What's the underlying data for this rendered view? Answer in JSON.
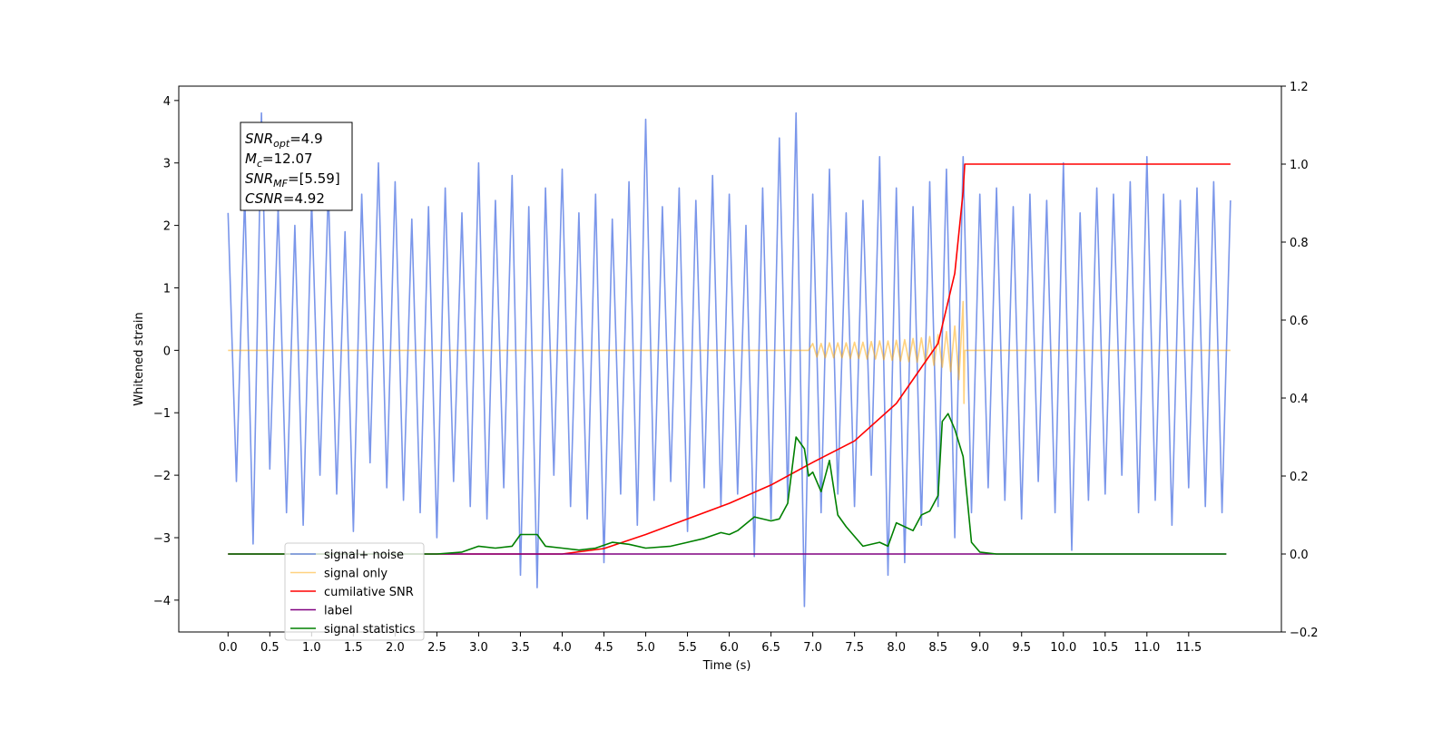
{
  "chart_data": {
    "type": "line",
    "xlabel": "Time (s)",
    "ylabel": "Whitened strain",
    "xlim": [
      -0.59,
      12.61
    ],
    "ylim": [
      -4.51,
      4.23
    ],
    "y2lim": [
      -0.2,
      1.2
    ],
    "xticks": [
      {
        "value": 0,
        "label": "0.0"
      },
      {
        "value": 0.5,
        "label": "0.5"
      },
      {
        "value": 1,
        "label": "1.0"
      },
      {
        "value": 1.5,
        "label": "1.5"
      },
      {
        "value": 2,
        "label": "2.0"
      },
      {
        "value": 2.5,
        "label": "2.5"
      },
      {
        "value": 3,
        "label": "3.0"
      },
      {
        "value": 3.5,
        "label": "3.5"
      },
      {
        "value": 4,
        "label": "4.0"
      },
      {
        "value": 4.5,
        "label": "4.5"
      },
      {
        "value": 5,
        "label": "5.0"
      },
      {
        "value": 5.5,
        "label": "5.5"
      },
      {
        "value": 6,
        "label": "6.0"
      },
      {
        "value": 6.5,
        "label": "6.5"
      },
      {
        "value": 7,
        "label": "7.0"
      },
      {
        "value": 7.5,
        "label": "7.5"
      },
      {
        "value": 8,
        "label": "8.0"
      },
      {
        "value": 8.5,
        "label": "8.5"
      },
      {
        "value": 9,
        "label": "9.0"
      },
      {
        "value": 9.5,
        "label": "9.5"
      },
      {
        "value": 10,
        "label": "10.0"
      },
      {
        "value": 10.5,
        "label": "10.5"
      },
      {
        "value": 11,
        "label": "11.0"
      },
      {
        "value": 11.5,
        "label": "11.5"
      }
    ],
    "yticks": [
      {
        "value": -4,
        "label": "−4"
      },
      {
        "value": -3,
        "label": "−3"
      },
      {
        "value": -2,
        "label": "−2"
      },
      {
        "value": -1,
        "label": "−1"
      },
      0,
      1,
      2,
      3,
      4
    ],
    "y2ticks": [
      {
        "value": -0.2,
        "label": "−0.2"
      },
      {
        "value": 0,
        "label": "0.0"
      },
      0.2,
      0.4,
      0.6,
      0.8,
      {
        "value": 1,
        "label": "1.0"
      },
      1.2
    ],
    "annotation": [
      {
        "symbol": "SNR",
        "subscript": "opt",
        "text": "=4.9"
      },
      {
        "symbol": "M",
        "subscript": "c",
        "text": "=12.07"
      },
      {
        "symbol": "SNR",
        "subscript": "MF",
        "text": "=[5.59]"
      },
      {
        "symbol": "CSNR",
        "text": "=4.92"
      }
    ],
    "series": [
      {
        "name": "signal+ noise",
        "color": "royalblue",
        "alpha": 0.7,
        "x": [
          0.0,
          0.1,
          0.2,
          0.3,
          0.4,
          0.5,
          0.6,
          0.7,
          0.8,
          0.9,
          1.0,
          1.1,
          1.2,
          1.3,
          1.4,
          1.5,
          1.6,
          1.7,
          1.8,
          1.9,
          2.0,
          2.1,
          2.2,
          2.3,
          2.4,
          2.5,
          2.6,
          2.7,
          2.8,
          2.9,
          3.0,
          3.1,
          3.2,
          3.3,
          3.4,
          3.5,
          3.6,
          3.7,
          3.8,
          3.9,
          4.0,
          4.1,
          4.2,
          4.3,
          4.4,
          4.5,
          4.6,
          4.7,
          4.8,
          4.9,
          5.0,
          5.1,
          5.2,
          5.3,
          5.4,
          5.5,
          5.6,
          5.7,
          5.8,
          5.9,
          6.0,
          6.1,
          6.2,
          6.3,
          6.4,
          6.5,
          6.6,
          6.7,
          6.8,
          6.9,
          7.0,
          7.1,
          7.2,
          7.3,
          7.4,
          7.5,
          7.6,
          7.7,
          7.8,
          7.9,
          8.0,
          8.1,
          8.2,
          8.3,
          8.4,
          8.5,
          8.6,
          8.7,
          8.8,
          8.9,
          9.0,
          9.1,
          9.2,
          9.3,
          9.4,
          9.5,
          9.6,
          9.7,
          9.8,
          9.9,
          10.0,
          10.1,
          10.2,
          10.3,
          10.4,
          10.5,
          10.6,
          10.7,
          10.8,
          10.9,
          11.0,
          11.1,
          11.2,
          11.3,
          11.4,
          11.5,
          11.6,
          11.7,
          11.8,
          11.9,
          12.0
        ],
        "values": [
          2.2,
          -2.1,
          2.5,
          -3.1,
          3.8,
          -1.9,
          2.3,
          -2.6,
          2.0,
          -2.8,
          2.4,
          -2.0,
          2.6,
          -2.3,
          1.9,
          -2.9,
          2.5,
          -1.8,
          3.0,
          -2.2,
          2.7,
          -2.4,
          2.1,
          -2.6,
          2.3,
          -3.0,
          2.6,
          -2.1,
          2.2,
          -2.5,
          3.0,
          -2.7,
          2.4,
          -2.2,
          2.8,
          -3.6,
          2.3,
          -3.8,
          2.6,
          -2.0,
          2.9,
          -2.5,
          2.2,
          -2.7,
          2.5,
          -3.4,
          2.1,
          -2.3,
          2.7,
          -2.8,
          3.7,
          -2.4,
          2.3,
          -2.1,
          2.6,
          -2.9,
          2.4,
          -2.2,
          2.8,
          -2.5,
          2.5,
          -2.3,
          2.0,
          -3.3,
          2.6,
          -2.7,
          3.4,
          -2.4,
          3.8,
          -4.1,
          2.5,
          -2.6,
          2.9,
          -2.3,
          2.2,
          -2.5,
          2.4,
          -2.0,
          3.1,
          -3.6,
          2.6,
          -3.4,
          2.3,
          -2.8,
          2.7,
          -2.5,
          2.9,
          -3.0,
          3.1,
          -2.6,
          2.5,
          -2.2,
          2.6,
          -2.4,
          2.3,
          -2.7,
          2.5,
          -2.1,
          2.4,
          -2.6,
          3.0,
          -3.2,
          2.2,
          -2.4,
          2.6,
          -2.3,
          2.5,
          -2.0,
          2.7,
          -2.6,
          3.1,
          -2.4,
          2.5,
          -2.8,
          2.4,
          -2.2,
          2.6,
          -2.5,
          2.7,
          -2.6,
          2.4
        ]
      },
      {
        "name": "signal only",
        "color": "orange",
        "alpha": 0.5,
        "x": [
          0.0,
          6.95,
          7.0,
          7.05,
          7.1,
          7.15,
          7.2,
          7.25,
          7.3,
          7.35,
          7.4,
          7.45,
          7.5,
          7.55,
          7.6,
          7.65,
          7.7,
          7.75,
          7.8,
          7.85,
          7.9,
          7.95,
          8.0,
          8.05,
          8.1,
          8.15,
          8.2,
          8.25,
          8.3,
          8.35,
          8.4,
          8.45,
          8.5,
          8.55,
          8.6,
          8.65,
          8.7,
          8.75,
          8.8,
          8.81,
          8.82,
          12.0
        ],
        "values": [
          0,
          0,
          0.11,
          -0.11,
          0.11,
          -0.12,
          0.12,
          -0.12,
          0.12,
          -0.12,
          0.12,
          -0.13,
          0.13,
          -0.13,
          0.13,
          -0.14,
          0.14,
          -0.14,
          0.15,
          -0.15,
          0.15,
          -0.16,
          0.16,
          -0.17,
          0.17,
          -0.18,
          0.19,
          -0.19,
          0.2,
          -0.21,
          0.22,
          -0.24,
          0.25,
          -0.27,
          0.3,
          -0.34,
          0.39,
          -0.47,
          0.78,
          -0.85,
          0,
          0
        ]
      },
      {
        "name": "cumilative SNR",
        "color": "red",
        "alpha": 1,
        "axis": "y2",
        "x": [
          0.0,
          4.0,
          4.5,
          5.0,
          5.5,
          6.0,
          6.5,
          7.0,
          7.5,
          8.0,
          8.5,
          8.7,
          8.8,
          8.82,
          12.0
        ],
        "values": [
          0,
          0,
          0.014,
          0.05,
          0.09,
          0.13,
          0.177,
          0.235,
          0.29,
          0.386,
          0.54,
          0.72,
          0.93,
          1.0,
          1.0
        ]
      },
      {
        "name": "label",
        "color": "purple",
        "alpha": 1,
        "axis": "y2",
        "x": [
          0.0,
          11.95
        ],
        "values": [
          0,
          0
        ]
      },
      {
        "name": "signal statistics",
        "color": "green",
        "alpha": 1,
        "axis": "y2",
        "x": [
          0.0,
          2.5,
          2.8,
          3.0,
          3.2,
          3.4,
          3.5,
          3.7,
          3.8,
          4.0,
          4.2,
          4.4,
          4.6,
          4.8,
          5.0,
          5.3,
          5.5,
          5.7,
          5.9,
          6.0,
          6.1,
          6.3,
          6.5,
          6.6,
          6.7,
          6.8,
          6.9,
          6.95,
          7.0,
          7.1,
          7.2,
          7.3,
          7.4,
          7.6,
          7.8,
          7.9,
          8.0,
          8.2,
          8.3,
          8.4,
          8.5,
          8.55,
          8.62,
          8.7,
          8.8,
          8.9,
          9.0,
          9.2,
          11.95
        ],
        "values": [
          0,
          0,
          0.005,
          0.02,
          0.015,
          0.02,
          0.05,
          0.05,
          0.02,
          0.015,
          0.01,
          0.015,
          0.03,
          0.025,
          0.015,
          0.02,
          0.03,
          0.04,
          0.055,
          0.05,
          0.06,
          0.095,
          0.085,
          0.09,
          0.13,
          0.3,
          0.27,
          0.2,
          0.21,
          0.16,
          0.24,
          0.1,
          0.07,
          0.02,
          0.03,
          0.02,
          0.08,
          0.06,
          0.1,
          0.11,
          0.15,
          0.34,
          0.36,
          0.32,
          0.25,
          0.03,
          0.005,
          0,
          0
        ]
      }
    ]
  }
}
